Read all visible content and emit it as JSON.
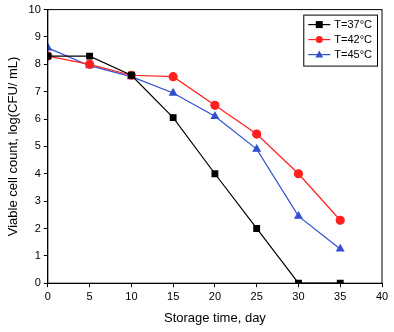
{
  "chart_data": {
    "type": "line",
    "x_label": "Storage time, day",
    "y_label": "Viable cell count, log(CFU/ mL)",
    "x": [
      0,
      5,
      10,
      15,
      20,
      25,
      30,
      35
    ],
    "series": [
      {
        "name": "T=37°C",
        "color": "#000000",
        "marker": "square",
        "values": [
          8.3,
          8.3,
          7.6,
          6.05,
          4.0,
          2.0,
          0,
          0
        ]
      },
      {
        "name": "T=42°C",
        "color": "#ff2020",
        "marker": "circle",
        "values": [
          8.3,
          8.0,
          7.6,
          7.55,
          6.5,
          5.45,
          4.0,
          2.3
        ]
      },
      {
        "name": "T=45°C",
        "color": "#3050d0",
        "marker": "triangle",
        "values": [
          8.6,
          7.95,
          7.55,
          6.95,
          6.1,
          4.9,
          2.45,
          1.25
        ]
      }
    ],
    "xlim": [
      0,
      40
    ],
    "xticks": [
      0,
      5,
      10,
      15,
      20,
      25,
      30,
      35,
      40
    ],
    "ylim": [
      0,
      10
    ],
    "yticks": [
      0,
      1,
      2,
      3,
      4,
      5,
      6,
      7,
      8,
      9,
      10
    ],
    "grid": false,
    "legend": "upper right"
  }
}
